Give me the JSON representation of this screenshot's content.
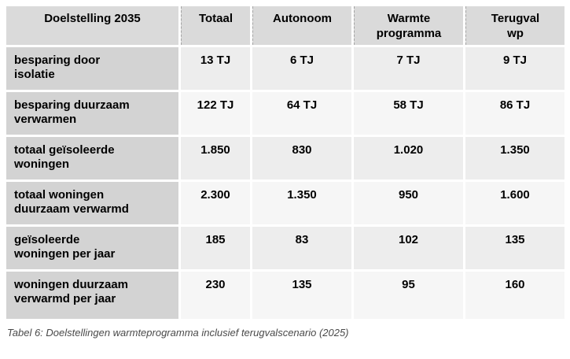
{
  "table": {
    "columns": [
      "Doelstelling 2035",
      "Totaal",
      "Autonoom",
      "Warmte\nprogramma",
      "Terugval\nwp"
    ],
    "rows": [
      {
        "label": "besparing door isolatie",
        "values": [
          "13 TJ",
          "6 TJ",
          "7 TJ",
          "9 TJ"
        ]
      },
      {
        "label": "besparing duurzaam verwarmen",
        "values": [
          "122 TJ",
          "64 TJ",
          "58 TJ",
          "86 TJ"
        ]
      },
      {
        "label": "totaal geïsoleerde woningen",
        "values": [
          "1.850",
          "830",
          "1.020",
          "1.350"
        ]
      },
      {
        "label": "totaal woningen duurzaam verwarmd",
        "values": [
          "2.300",
          "1.350",
          "950",
          "1.600"
        ]
      },
      {
        "label": "geïsoleerde woningen per jaar",
        "values": [
          "185",
          "83",
          "102",
          "135"
        ]
      },
      {
        "label": "woningen duurzaam verwarmd per jaar",
        "values": [
          "230",
          "135",
          "95",
          "160"
        ]
      }
    ]
  },
  "caption": "Tabel 6: Doelstellingen warmteprogramma inclusief terugvalscenario (2025)",
  "colors": {
    "header_bg": "#dadada",
    "row_label_bg": "#d3d3d3",
    "data_row_odd_bg": "#ededed",
    "data_row_even_bg": "#f6f6f6",
    "header_divider": "#a3a3a3",
    "table_text": "#000000",
    "caption_text": "#4a4a4a"
  }
}
